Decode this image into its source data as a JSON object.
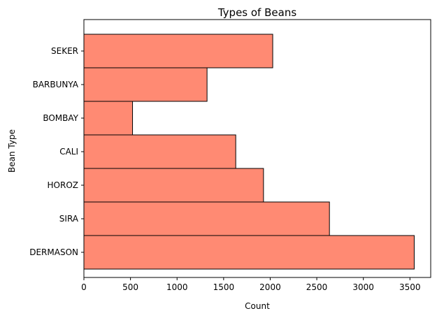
{
  "chart_data": {
    "type": "bar",
    "orientation": "horizontal",
    "title": "Types of Beans",
    "xlabel": "Count",
    "ylabel": "Bean Type",
    "categories": [
      "SEKER",
      "BARBUNYA",
      "BOMBAY",
      "CALI",
      "HOROZ",
      "SIRA",
      "DERMASON"
    ],
    "values": [
      2027,
      1322,
      522,
      1630,
      1928,
      2636,
      3546
    ],
    "xlim": [
      0,
      3723
    ],
    "xticks": [
      0,
      500,
      1000,
      1500,
      2000,
      2500,
      3000,
      3500
    ],
    "grid": false,
    "bar_color": "#ff8a73",
    "edge_color": "#000000"
  }
}
